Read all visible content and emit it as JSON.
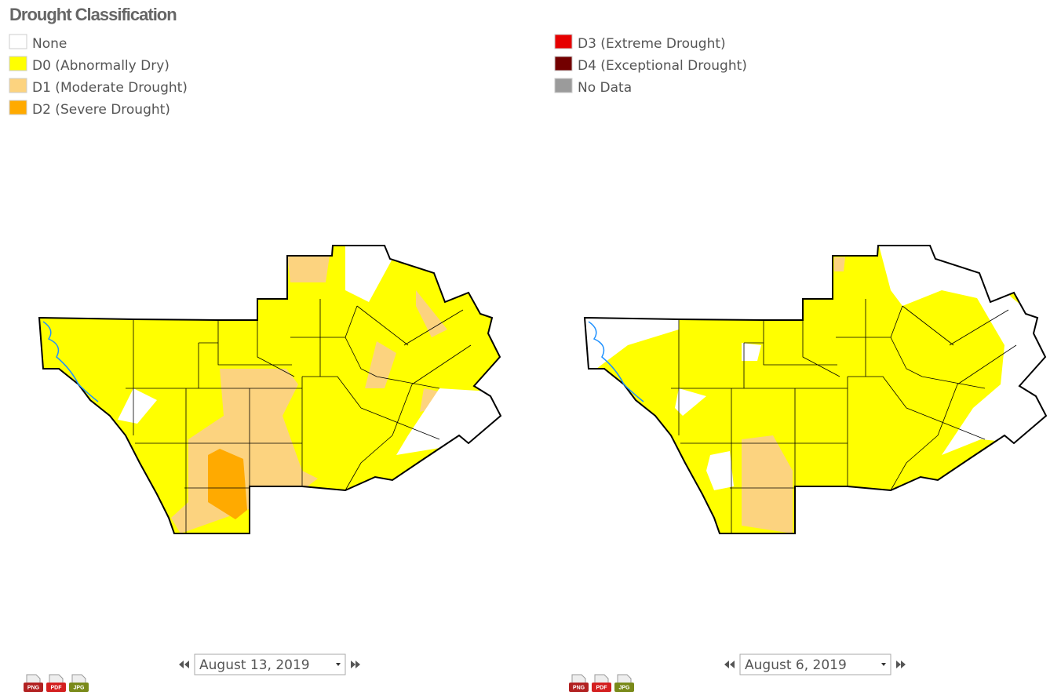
{
  "header": {
    "title": "Drought Classification"
  },
  "legend": {
    "items": [
      {
        "label": "None",
        "color": "#ffffff"
      },
      {
        "label": "D0 (Abnormally Dry)",
        "color": "#ffff00"
      },
      {
        "label": "D1 (Moderate Drought)",
        "color": "#fcd37f"
      },
      {
        "label": "D2 (Severe Drought)",
        "color": "#ffaa00"
      },
      {
        "label": "D3 (Extreme Drought)",
        "color": "#e60000"
      },
      {
        "label": "D4 (Exceptional Drought)",
        "color": "#730000"
      },
      {
        "label": "No Data",
        "color": "#9b9b9b"
      }
    ]
  },
  "maps": [
    {
      "date": "August 13, 2019"
    },
    {
      "date": "August 6, 2019"
    }
  ],
  "downloads": [
    "PNG",
    "PDF",
    "JPG"
  ]
}
